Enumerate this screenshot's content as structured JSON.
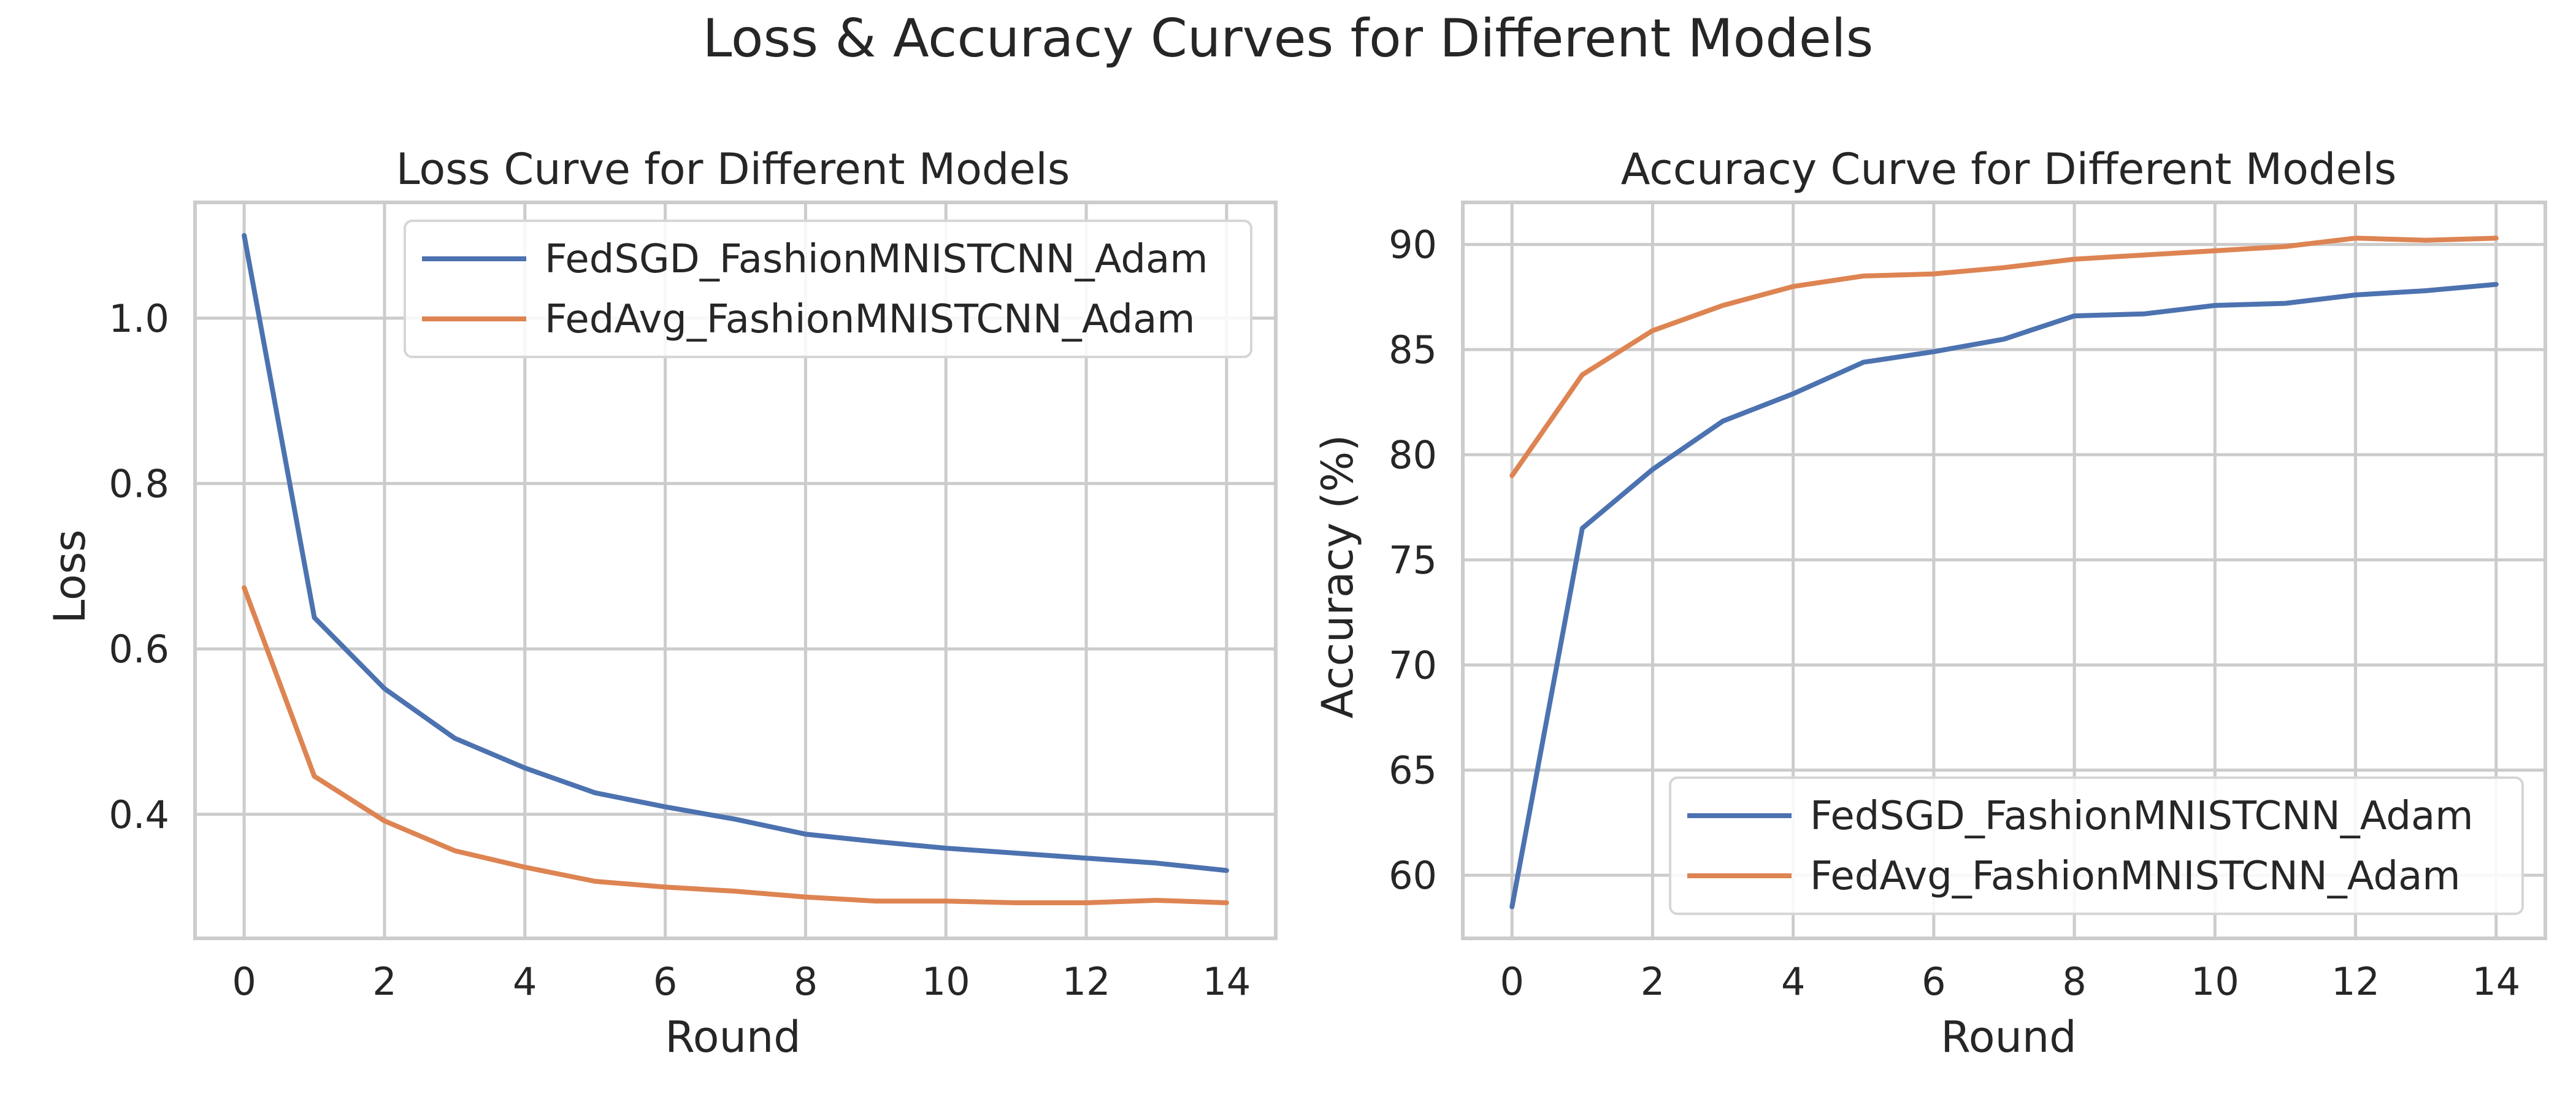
{
  "figure": {
    "suptitle": "Loss & Accuracy Curves for Different Models"
  },
  "colors": {
    "series_blue": "#4c72b0",
    "series_orange": "#dd8452",
    "grid": "#cccccc",
    "spine": "#cccccc",
    "background": "#ffffff"
  },
  "chart_data": [
    {
      "type": "line",
      "title": "Loss Curve for Different Models",
      "xlabel": "Round",
      "ylabel": "Loss",
      "xlim": [
        -0.7,
        14.7
      ],
      "ylim": [
        0.25,
        1.14
      ],
      "xticks": [
        0,
        2,
        4,
        6,
        8,
        10,
        12,
        14
      ],
      "yticks": [
        0.4,
        0.6,
        0.8,
        1.0
      ],
      "ytick_labels": [
        "0.4",
        "0.6",
        "0.8",
        "1.0"
      ],
      "grid": true,
      "legend_position": "upper right",
      "x": [
        0,
        1,
        2,
        3,
        4,
        5,
        6,
        7,
        8,
        9,
        10,
        11,
        12,
        13,
        14
      ],
      "series": [
        {
          "name": "FedSGD_FashionMNISTCNN_Adam",
          "color": "#4c72b0",
          "values": [
            1.1,
            0.638,
            0.552,
            0.492,
            0.456,
            0.426,
            0.409,
            0.394,
            0.376,
            0.367,
            0.359,
            0.353,
            0.347,
            0.341,
            0.332
          ]
        },
        {
          "name": "FedAvg_FashionMNISTCNN_Adam",
          "color": "#dd8452",
          "values": [
            0.674,
            0.446,
            0.392,
            0.356,
            0.336,
            0.319,
            0.312,
            0.307,
            0.3,
            0.295,
            0.295,
            0.293,
            0.293,
            0.296,
            0.293
          ]
        }
      ]
    },
    {
      "type": "line",
      "title": "Accuracy Curve for Different Models",
      "xlabel": "Round",
      "ylabel": "Accuracy (%)",
      "xlim": [
        -0.7,
        14.7
      ],
      "ylim": [
        57.0,
        92.0
      ],
      "xticks": [
        0,
        2,
        4,
        6,
        8,
        10,
        12,
        14
      ],
      "yticks": [
        60,
        65,
        70,
        75,
        80,
        85,
        90
      ],
      "ytick_labels": [
        "60",
        "65",
        "70",
        "75",
        "80",
        "85",
        "90"
      ],
      "grid": true,
      "legend_position": "lower right",
      "x": [
        0,
        1,
        2,
        3,
        4,
        5,
        6,
        7,
        8,
        9,
        10,
        11,
        12,
        13,
        14
      ],
      "series": [
        {
          "name": "FedSGD_FashionMNISTCNN_Adam",
          "color": "#4c72b0",
          "values": [
            58.5,
            76.5,
            79.3,
            81.6,
            82.9,
            84.4,
            84.9,
            85.5,
            86.6,
            86.7,
            87.1,
            87.2,
            87.6,
            87.8,
            88.1
          ]
        },
        {
          "name": "FedAvg_FashionMNISTCNN_Adam",
          "color": "#dd8452",
          "values": [
            79.0,
            83.8,
            85.9,
            87.1,
            88.0,
            88.5,
            88.6,
            88.9,
            89.3,
            89.5,
            89.7,
            89.9,
            90.3,
            90.2,
            90.3
          ]
        }
      ]
    }
  ]
}
